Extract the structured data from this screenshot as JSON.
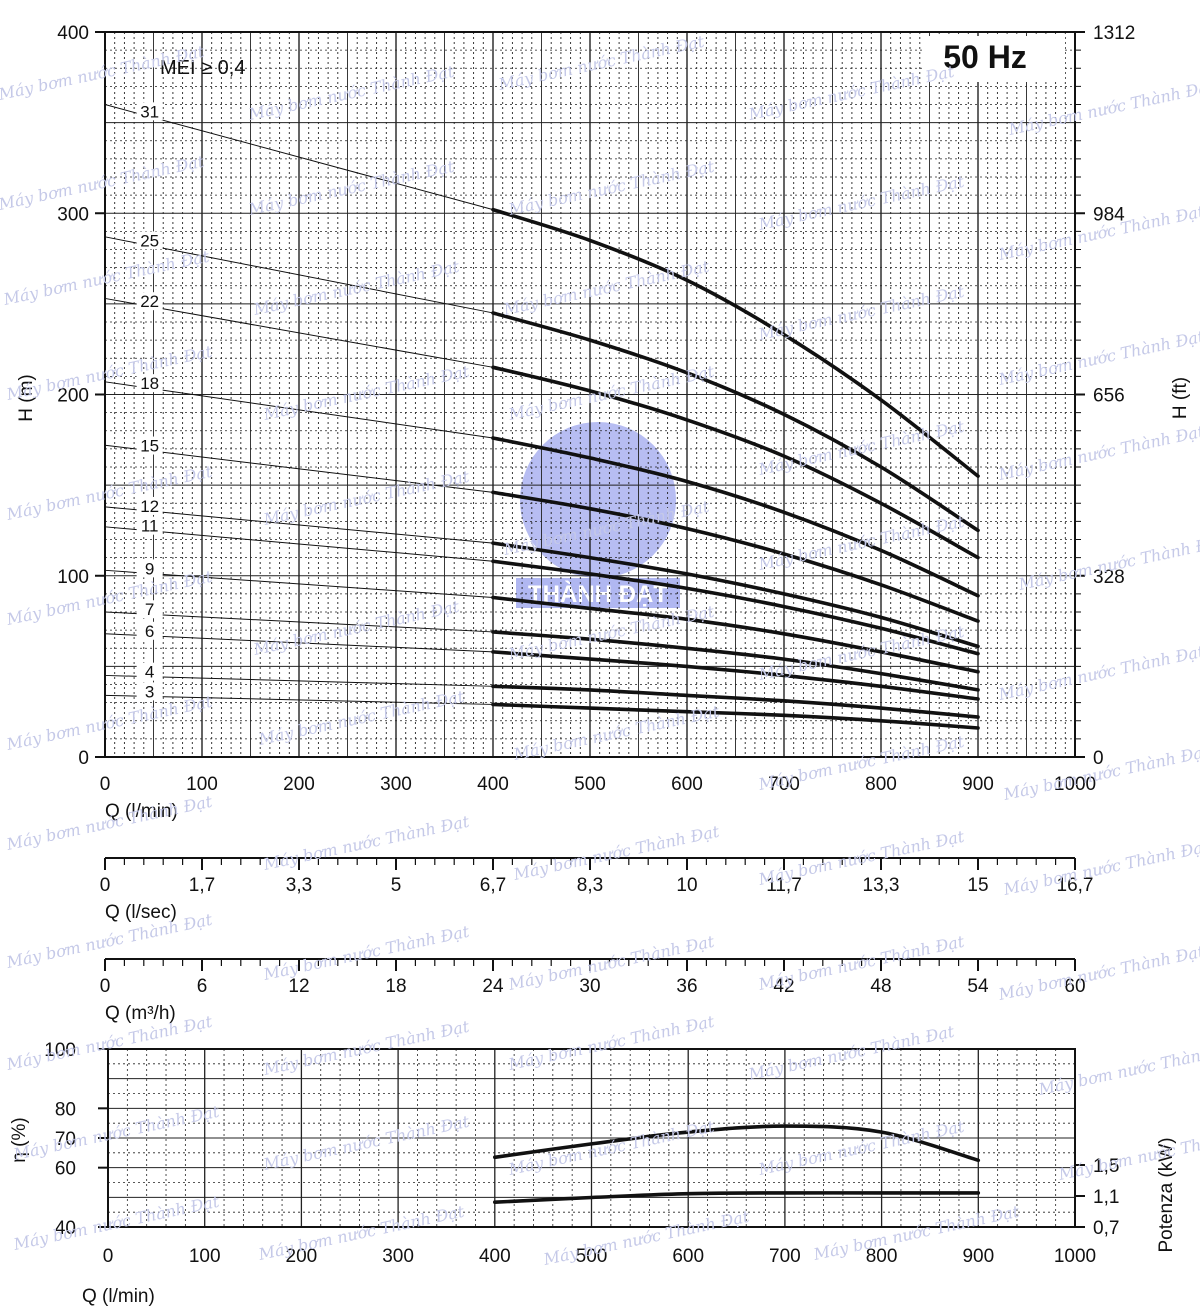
{
  "header": {
    "badge": "50 Hz",
    "note": "MEI ≥ 0,4"
  },
  "chart_data": [
    {
      "type": "line",
      "name": "head_curves",
      "xlabel": "Q (l/min)",
      "ylabel": "H (m)",
      "y2label": "H (ft)",
      "xlim": [
        0,
        1000
      ],
      "ylim": [
        0,
        400
      ],
      "x_ticks": [
        "0",
        "100",
        "200",
        "300",
        "400",
        "500",
        "600",
        "700",
        "800",
        "900",
        "1000"
      ],
      "y_ticks": [
        "0",
        "100",
        "200",
        "300",
        "400"
      ],
      "y2_ticks": [
        "0",
        "328",
        "656",
        "984",
        "1312"
      ],
      "grid": true,
      "x": [
        400,
        500,
        600,
        700,
        800,
        900
      ],
      "series": [
        {
          "name": "31",
          "values": [
            302,
            285,
            263,
            233,
            197,
            155
          ]
        },
        {
          "name": "25",
          "values": [
            245,
            230,
            212,
            189,
            160,
            125
          ]
        },
        {
          "name": "22",
          "values": [
            215,
            202,
            186,
            166,
            140,
            110
          ]
        },
        {
          "name": "18",
          "values": [
            176,
            165,
            152,
            135,
            114,
            89
          ]
        },
        {
          "name": "15",
          "values": [
            146,
            137,
            126,
            112,
            95,
            75
          ]
        },
        {
          "name": "12",
          "values": [
            118,
            110,
            101,
            90,
            77,
            61
          ]
        },
        {
          "name": "11",
          "values": [
            108,
            101,
            93,
            83,
            71,
            57
          ]
        },
        {
          "name": "9",
          "values": [
            88,
            82,
            76,
            68,
            58,
            47
          ]
        },
        {
          "name": "7",
          "values": [
            69,
            65,
            60,
            54,
            46,
            37
          ]
        },
        {
          "name": "6",
          "values": [
            58,
            54,
            50,
            45,
            39,
            32
          ]
        },
        {
          "name": "4",
          "values": [
            39,
            37,
            34,
            31,
            27,
            22
          ]
        },
        {
          "name": "3",
          "values": [
            29,
            27,
            25,
            23,
            20,
            16
          ]
        }
      ],
      "shutoff_head": [
        360,
        287,
        253,
        207,
        172,
        138,
        127,
        103,
        80,
        68,
        45,
        34
      ]
    },
    {
      "type": "axis",
      "name": "flow_l_sec",
      "xlabel": "Q (l/sec)",
      "ticks": [
        "0",
        "1,7",
        "3,3",
        "5",
        "6,7",
        "8,3",
        "10",
        "11,7",
        "13,3",
        "15",
        "16,7"
      ]
    },
    {
      "type": "axis",
      "name": "flow_m3_h",
      "xlabel": "Q (m³/h)",
      "ticks": [
        "0",
        "6",
        "12",
        "18",
        "24",
        "30",
        "36",
        "42",
        "48",
        "54",
        "60"
      ]
    },
    {
      "type": "line",
      "name": "efficiency_power",
      "xlabel": "Q (l/min)",
      "ylabel": "η (%)",
      "y2label": "Potenza (kW)",
      "xlim": [
        0,
        1000
      ],
      "ylim": [
        40,
        100
      ],
      "x_ticks": [
        "0",
        "100",
        "200",
        "300",
        "400",
        "500",
        "600",
        "700",
        "800",
        "900",
        "1000"
      ],
      "y_ticks": [
        "40",
        "60",
        "70",
        "80",
        "100"
      ],
      "y2_ticks": [
        "0,7",
        "1,1",
        "1,5"
      ],
      "grid": true,
      "x": [
        400,
        500,
        600,
        700,
        800,
        900
      ],
      "series": [
        {
          "name": "η",
          "values": [
            63.5,
            68,
            72,
            74,
            72,
            62.5
          ]
        },
        {
          "name": "P",
          "values": [
            1.02,
            1.08,
            1.13,
            1.14,
            1.14,
            1.14
          ]
        }
      ]
    }
  ],
  "watermark": {
    "text": "Máy bơm nước Thành Đạt",
    "logo_text": "THÀNH ĐẠT",
    "colors": {
      "text": "#c5c9e8",
      "logo": "#6f7be6"
    }
  }
}
